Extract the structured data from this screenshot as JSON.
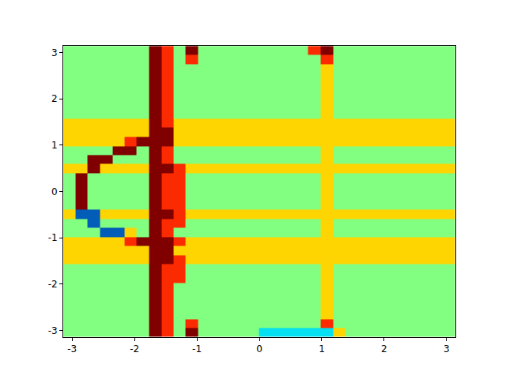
{
  "chart_data": {
    "type": "heatmap",
    "color": "Jet",
    "x": [
      -3.04,
      -2.85,
      -2.65,
      -2.45,
      -2.26,
      -2.06,
      -1.87,
      -1.67,
      -1.47,
      -1.28,
      -1.08,
      -0.88,
      -0.69,
      -0.49,
      -0.29,
      -0.1,
      0.1,
      0.29,
      0.49,
      0.69,
      0.88,
      1.08,
      1.28,
      1.47,
      1.67,
      1.87,
      2.06,
      2.26,
      2.45,
      2.65,
      2.85,
      3.04
    ],
    "y": [
      -3.04,
      -2.85,
      -2.65,
      -2.45,
      -2.26,
      -2.06,
      -1.87,
      -1.67,
      -1.47,
      -1.28,
      -1.08,
      -0.88,
      -0.69,
      -0.49,
      -0.29,
      -0.1,
      0.1,
      0.29,
      0.49,
      0.69,
      0.88,
      1.08,
      1.28,
      1.47,
      1.67,
      1.87,
      2.06,
      2.26,
      2.45,
      2.65,
      2.85,
      3.04
    ],
    "z": [
      [
        0,
        0,
        0,
        0,
        0,
        0,
        0,
        3,
        2,
        0,
        3,
        0,
        0,
        0,
        0,
        0,
        -1,
        -1,
        -1,
        -1,
        -1,
        -1,
        1,
        0,
        0,
        0,
        0,
        0,
        0,
        0,
        0,
        0
      ],
      [
        0,
        0,
        0,
        0,
        0,
        0,
        0,
        3,
        2,
        0,
        2,
        0,
        0,
        0,
        0,
        0,
        0,
        0,
        0,
        0,
        0,
        2,
        0,
        0,
        0,
        0,
        0,
        0,
        0,
        0,
        0,
        0
      ],
      [
        0,
        0,
        0,
        0,
        0,
        0,
        0,
        3,
        2,
        0,
        0,
        0,
        0,
        0,
        0,
        0,
        0,
        0,
        0,
        0,
        0,
        1,
        0,
        0,
        0,
        0,
        0,
        0,
        0,
        0,
        0,
        0
      ],
      [
        0,
        0,
        0,
        0,
        0,
        0,
        0,
        3,
        2,
        0,
        0,
        0,
        0,
        0,
        0,
        0,
        0,
        0,
        0,
        0,
        0,
        1,
        0,
        0,
        0,
        0,
        0,
        0,
        0,
        0,
        0,
        0
      ],
      [
        0,
        0,
        0,
        0,
        0,
        0,
        0,
        3,
        2,
        0,
        0,
        0,
        0,
        0,
        0,
        0,
        0,
        0,
        0,
        0,
        0,
        1,
        0,
        0,
        0,
        0,
        0,
        0,
        0,
        0,
        0,
        0
      ],
      [
        0,
        0,
        0,
        0,
        0,
        0,
        0,
        3,
        2,
        0,
        0,
        0,
        0,
        0,
        0,
        0,
        0,
        0,
        0,
        0,
        0,
        1,
        0,
        0,
        0,
        0,
        0,
        0,
        0,
        0,
        0,
        0
      ],
      [
        0,
        0,
        0,
        0,
        0,
        0,
        0,
        3,
        2,
        2,
        0,
        0,
        0,
        0,
        0,
        0,
        0,
        0,
        0,
        0,
        0,
        1,
        0,
        0,
        0,
        0,
        0,
        0,
        0,
        0,
        0,
        0
      ],
      [
        0,
        0,
        0,
        0,
        0,
        0,
        0,
        3,
        2,
        2,
        0,
        0,
        0,
        0,
        0,
        0,
        0,
        0,
        0,
        0,
        0,
        1,
        0,
        0,
        0,
        0,
        0,
        0,
        0,
        0,
        0,
        0
      ],
      [
        1,
        1,
        1,
        1,
        1,
        1,
        1,
        3,
        3,
        2,
        1,
        1,
        1,
        1,
        1,
        1,
        1,
        1,
        1,
        1,
        1,
        1,
        1,
        1,
        1,
        1,
        1,
        1,
        1,
        1,
        1,
        1
      ],
      [
        1,
        1,
        1,
        1,
        1,
        1,
        1,
        3,
        3,
        1,
        1,
        1,
        1,
        1,
        1,
        1,
        1,
        1,
        1,
        1,
        1,
        1,
        1,
        1,
        1,
        1,
        1,
        1,
        1,
        1,
        1,
        1
      ],
      [
        1,
        1,
        1,
        1,
        1,
        2,
        3,
        3,
        3,
        2,
        1,
        1,
        1,
        1,
        1,
        1,
        1,
        1,
        1,
        1,
        1,
        1,
        1,
        1,
        1,
        1,
        1,
        1,
        1,
        1,
        1,
        1
      ],
      [
        0,
        0,
        0,
        -2,
        -2,
        1,
        0,
        3,
        2,
        0,
        0,
        0,
        0,
        0,
        0,
        0,
        0,
        0,
        0,
        0,
        0,
        1,
        0,
        0,
        0,
        0,
        0,
        0,
        0,
        0,
        0,
        0
      ],
      [
        0,
        0,
        -2,
        0,
        0,
        0,
        0,
        3,
        2,
        2,
        0,
        0,
        0,
        0,
        0,
        0,
        0,
        0,
        0,
        0,
        0,
        1,
        0,
        0,
        0,
        0,
        0,
        0,
        0,
        0,
        0,
        0
      ],
      [
        1,
        -2,
        -2,
        1,
        1,
        1,
        1,
        3,
        3,
        2,
        1,
        1,
        1,
        1,
        1,
        1,
        1,
        1,
        1,
        1,
        1,
        1,
        1,
        1,
        1,
        1,
        1,
        1,
        1,
        1,
        1,
        1
      ],
      [
        0,
        3,
        0,
        0,
        0,
        0,
        0,
        3,
        2,
        2,
        0,
        0,
        0,
        0,
        0,
        0,
        0,
        0,
        0,
        0,
        0,
        1,
        0,
        0,
        0,
        0,
        0,
        0,
        0,
        0,
        0,
        0
      ],
      [
        0,
        3,
        0,
        0,
        0,
        0,
        0,
        3,
        2,
        2,
        0,
        0,
        0,
        0,
        0,
        0,
        0,
        0,
        0,
        0,
        0,
        1,
        0,
        0,
        0,
        0,
        0,
        0,
        0,
        0,
        0,
        0
      ],
      [
        0,
        3,
        0,
        0,
        0,
        0,
        0,
        3,
        2,
        2,
        0,
        0,
        0,
        0,
        0,
        0,
        0,
        0,
        0,
        0,
        0,
        1,
        0,
        0,
        0,
        0,
        0,
        0,
        0,
        0,
        0,
        0
      ],
      [
        0,
        3,
        0,
        0,
        0,
        0,
        0,
        3,
        2,
        2,
        0,
        0,
        0,
        0,
        0,
        0,
        0,
        0,
        0,
        0,
        0,
        1,
        0,
        0,
        0,
        0,
        0,
        0,
        0,
        0,
        0,
        0
      ],
      [
        1,
        1,
        3,
        1,
        1,
        1,
        1,
        3,
        3,
        2,
        1,
        1,
        1,
        1,
        1,
        1,
        1,
        1,
        1,
        1,
        1,
        1,
        1,
        1,
        1,
        1,
        1,
        1,
        1,
        1,
        1,
        1
      ],
      [
        0,
        0,
        3,
        3,
        0,
        0,
        0,
        3,
        2,
        0,
        0,
        0,
        0,
        0,
        0,
        0,
        0,
        0,
        0,
        0,
        0,
        1,
        0,
        0,
        0,
        0,
        0,
        0,
        0,
        0,
        0,
        0
      ],
      [
        0,
        0,
        0,
        0,
        3,
        3,
        0,
        3,
        2,
        0,
        0,
        0,
        0,
        0,
        0,
        0,
        0,
        0,
        0,
        0,
        0,
        1,
        0,
        0,
        0,
        0,
        0,
        0,
        0,
        0,
        0,
        0
      ],
      [
        1,
        1,
        1,
        1,
        1,
        2,
        3,
        3,
        3,
        1,
        1,
        1,
        1,
        1,
        1,
        1,
        1,
        1,
        1,
        1,
        1,
        1,
        1,
        1,
        1,
        1,
        1,
        1,
        1,
        1,
        1,
        1
      ],
      [
        1,
        1,
        1,
        1,
        1,
        1,
        1,
        3,
        3,
        1,
        1,
        1,
        1,
        1,
        1,
        1,
        1,
        1,
        1,
        1,
        1,
        1,
        1,
        1,
        1,
        1,
        1,
        1,
        1,
        1,
        1,
        1
      ],
      [
        1,
        1,
        1,
        1,
        1,
        1,
        1,
        3,
        2,
        1,
        1,
        1,
        1,
        1,
        1,
        1,
        1,
        1,
        1,
        1,
        1,
        1,
        1,
        1,
        1,
        1,
        1,
        1,
        1,
        1,
        1,
        1
      ],
      [
        0,
        0,
        0,
        0,
        0,
        0,
        0,
        3,
        2,
        0,
        0,
        0,
        0,
        0,
        0,
        0,
        0,
        0,
        0,
        0,
        0,
        1,
        0,
        0,
        0,
        0,
        0,
        0,
        0,
        0,
        0,
        0
      ],
      [
        0,
        0,
        0,
        0,
        0,
        0,
        0,
        3,
        2,
        0,
        0,
        0,
        0,
        0,
        0,
        0,
        0,
        0,
        0,
        0,
        0,
        1,
        0,
        0,
        0,
        0,
        0,
        0,
        0,
        0,
        0,
        0
      ],
      [
        0,
        0,
        0,
        0,
        0,
        0,
        0,
        3,
        2,
        0,
        0,
        0,
        0,
        0,
        0,
        0,
        0,
        0,
        0,
        0,
        0,
        1,
        0,
        0,
        0,
        0,
        0,
        0,
        0,
        0,
        0,
        0
      ],
      [
        0,
        0,
        0,
        0,
        0,
        0,
        0,
        3,
        2,
        0,
        0,
        0,
        0,
        0,
        0,
        0,
        0,
        0,
        0,
        0,
        0,
        1,
        0,
        0,
        0,
        0,
        0,
        0,
        0,
        0,
        0,
        0
      ],
      [
        0,
        0,
        0,
        0,
        0,
        0,
        0,
        3,
        2,
        0,
        0,
        0,
        0,
        0,
        0,
        0,
        0,
        0,
        0,
        0,
        0,
        1,
        0,
        0,
        0,
        0,
        0,
        0,
        0,
        0,
        0,
        0
      ],
      [
        0,
        0,
        0,
        0,
        0,
        0,
        0,
        3,
        2,
        0,
        0,
        0,
        0,
        0,
        0,
        0,
        0,
        0,
        0,
        0,
        0,
        1,
        0,
        0,
        0,
        0,
        0,
        0,
        0,
        0,
        0,
        0
      ],
      [
        0,
        0,
        0,
        0,
        0,
        0,
        0,
        3,
        2,
        0,
        2,
        0,
        0,
        0,
        0,
        0,
        0,
        0,
        0,
        0,
        0,
        2,
        0,
        0,
        0,
        0,
        0,
        0,
        0,
        0,
        0,
        0
      ],
      [
        0,
        0,
        0,
        0,
        0,
        0,
        0,
        3,
        2,
        0,
        3,
        0,
        0,
        0,
        0,
        0,
        0,
        0,
        0,
        0,
        2,
        3,
        0,
        0,
        0,
        0,
        0,
        0,
        0,
        0,
        0,
        0
      ]
    ],
    "zlim": [
      -3,
      3
    ],
    "xlim": [
      -3.1416,
      3.1416
    ],
    "ylim": [
      -3.1416,
      3.1416
    ],
    "xticks": [
      -3,
      -2,
      -1,
      0,
      1,
      2,
      3
    ],
    "yticks": [
      -3,
      -2,
      -1,
      0,
      1,
      2,
      3
    ],
    "grid": false
  }
}
